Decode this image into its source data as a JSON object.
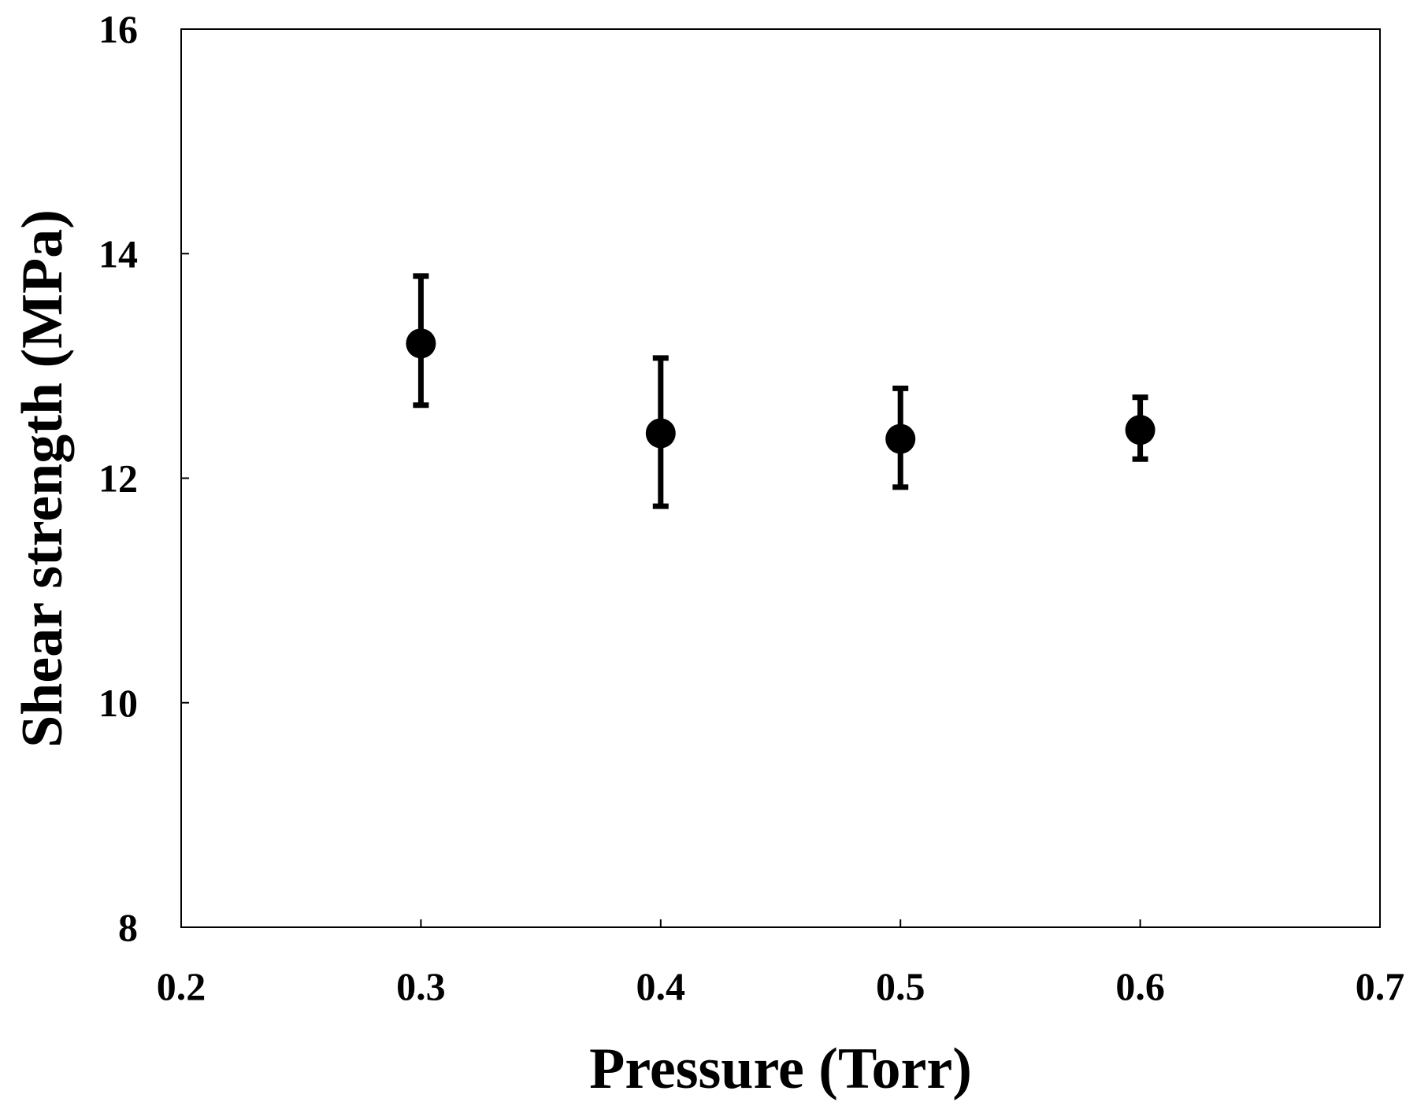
{
  "chart_data": {
    "type": "scatter",
    "title": "",
    "xlabel": "Pressure (Torr)",
    "ylabel": "Shear strength (MPa)",
    "xlim": [
      0.2,
      0.7
    ],
    "ylim": [
      8,
      16
    ],
    "x_ticks": [
      "0.2",
      "0.3",
      "0.4",
      "0.5",
      "0.6",
      "0.7"
    ],
    "y_ticks": [
      "8",
      "10",
      "12",
      "14",
      "16"
    ],
    "grid": false,
    "legend": "none",
    "marker_color": "#000000",
    "series": [
      {
        "x": [
          0.3,
          0.4,
          0.5,
          0.6
        ],
        "y": [
          13.2,
          12.4,
          12.35,
          12.43
        ],
        "y_err_low": [
          12.65,
          11.75,
          11.92,
          12.17
        ],
        "y_err_high": [
          13.8,
          13.07,
          12.8,
          12.72
        ]
      }
    ]
  }
}
